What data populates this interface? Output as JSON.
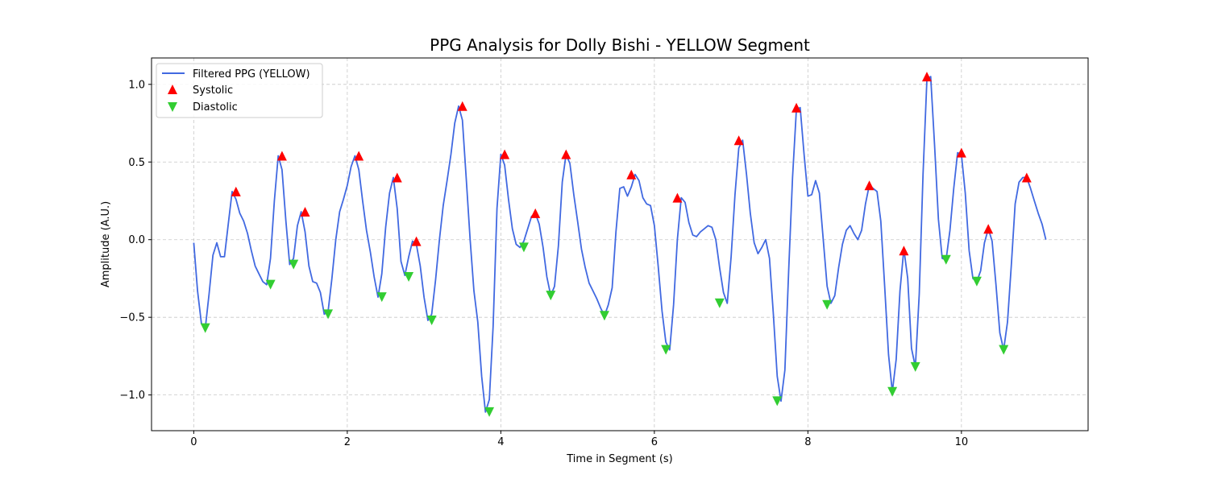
{
  "chart_data": {
    "type": "line",
    "title": "PPG Analysis for Dolly Bishi - YELLOW Segment",
    "xlabel": "Time in Segment (s)",
    "ylabel": "Amplitude (A.U.)",
    "xlim": [
      -0.55,
      11.65
    ],
    "ylim": [
      -1.23,
      1.17
    ],
    "xticks": [
      0,
      2,
      4,
      6,
      8,
      10
    ],
    "yticks": [
      -1.0,
      -0.5,
      0.0,
      0.5,
      1.0
    ],
    "xtick_labels": [
      "0",
      "2",
      "4",
      "6",
      "8",
      "10"
    ],
    "ytick_labels": [
      "−1.0",
      "−0.5",
      "0.0",
      "0.5",
      "1.0"
    ],
    "grid": true,
    "legend_position": "top-left",
    "colors": {
      "line": "#4169e1",
      "systolic": "#ff0000",
      "diastolic": "#32cd32"
    },
    "series": [
      {
        "name": "Filtered PPG (YELLOW)",
        "kind": "line",
        "x": [
          0.0,
          0.05,
          0.1,
          0.15,
          0.2,
          0.25,
          0.3,
          0.35,
          0.4,
          0.45,
          0.5,
          0.55,
          0.6,
          0.65,
          0.7,
          0.75,
          0.8,
          0.85,
          0.9,
          0.95,
          1.0,
          1.05,
          1.1,
          1.15,
          1.2,
          1.25,
          1.3,
          1.35,
          1.4,
          1.45,
          1.5,
          1.55,
          1.6,
          1.65,
          1.7,
          1.75,
          1.8,
          1.85,
          1.9,
          1.95,
          2.0,
          2.05,
          2.1,
          2.15,
          2.2,
          2.25,
          2.3,
          2.35,
          2.4,
          2.45,
          2.5,
          2.55,
          2.6,
          2.65,
          2.7,
          2.75,
          2.8,
          2.85,
          2.9,
          2.95,
          3.0,
          3.05,
          3.1,
          3.15,
          3.2,
          3.25,
          3.3,
          3.35,
          3.4,
          3.45,
          3.5,
          3.55,
          3.6,
          3.65,
          3.7,
          3.75,
          3.8,
          3.85,
          3.9,
          3.95,
          4.0,
          4.05,
          4.1,
          4.15,
          4.2,
          4.25,
          4.3,
          4.35,
          4.4,
          4.45,
          4.5,
          4.55,
          4.6,
          4.65,
          4.7,
          4.75,
          4.8,
          4.85,
          4.9,
          4.95,
          5.0,
          5.05,
          5.1,
          5.15,
          5.2,
          5.25,
          5.3,
          5.35,
          5.4,
          5.45,
          5.5,
          5.55,
          5.6,
          5.65,
          5.7,
          5.75,
          5.8,
          5.85,
          5.9,
          5.95,
          6.0,
          6.05,
          6.1,
          6.15,
          6.2,
          6.25,
          6.3,
          6.35,
          6.4,
          6.45,
          6.5,
          6.55,
          6.6,
          6.65,
          6.7,
          6.75,
          6.8,
          6.85,
          6.9,
          6.95,
          7.0,
          7.05,
          7.1,
          7.15,
          7.2,
          7.25,
          7.3,
          7.35,
          7.4,
          7.45,
          7.5,
          7.55,
          7.6,
          7.65,
          7.7,
          7.75,
          7.8,
          7.85,
          7.9,
          7.95,
          8.0,
          8.05,
          8.1,
          8.15,
          8.2,
          8.25,
          8.3,
          8.35,
          8.4,
          8.45,
          8.5,
          8.55,
          8.6,
          8.65,
          8.7,
          8.75,
          8.8,
          8.85,
          8.9,
          8.95,
          9.0,
          9.05,
          9.1,
          9.15,
          9.2,
          9.25,
          9.3,
          9.35,
          9.4,
          9.45,
          9.5,
          9.55,
          9.6,
          9.65,
          9.7,
          9.75,
          9.8,
          9.85,
          9.9,
          9.95,
          10.0,
          10.05,
          10.1,
          10.15,
          10.2,
          10.25,
          10.3,
          10.35,
          10.4,
          10.45,
          10.5,
          10.55,
          10.6,
          10.65,
          10.7,
          10.75,
          10.8,
          10.85,
          10.9,
          10.95,
          11.0,
          11.05,
          11.1
        ],
        "y": [
          -0.02,
          -0.33,
          -0.54,
          -0.57,
          -0.35,
          -0.1,
          -0.02,
          -0.11,
          -0.11,
          0.1,
          0.31,
          0.26,
          0.17,
          0.12,
          0.04,
          -0.07,
          -0.17,
          -0.22,
          -0.27,
          -0.29,
          -0.12,
          0.25,
          0.54,
          0.45,
          0.12,
          -0.16,
          -0.12,
          0.09,
          0.18,
          0.05,
          -0.17,
          -0.27,
          -0.28,
          -0.34,
          -0.48,
          -0.46,
          -0.25,
          0.0,
          0.18,
          0.26,
          0.35,
          0.47,
          0.54,
          0.45,
          0.25,
          0.06,
          -0.08,
          -0.24,
          -0.37,
          -0.22,
          0.08,
          0.3,
          0.4,
          0.2,
          -0.14,
          -0.23,
          -0.11,
          -0.01,
          -0.03,
          -0.17,
          -0.37,
          -0.52,
          -0.48,
          -0.26,
          0.0,
          0.22,
          0.38,
          0.55,
          0.75,
          0.86,
          0.77,
          0.39,
          0.0,
          -0.33,
          -0.53,
          -0.88,
          -1.11,
          -1.03,
          -0.56,
          0.2,
          0.55,
          0.48,
          0.26,
          0.07,
          -0.03,
          -0.05,
          -0.01,
          0.07,
          0.15,
          0.17,
          0.1,
          -0.05,
          -0.24,
          -0.36,
          -0.3,
          -0.04,
          0.37,
          0.55,
          0.49,
          0.29,
          0.12,
          -0.06,
          -0.18,
          -0.28,
          -0.33,
          -0.38,
          -0.44,
          -0.49,
          -0.42,
          -0.31,
          0.05,
          0.33,
          0.34,
          0.28,
          0.34,
          0.42,
          0.38,
          0.27,
          0.23,
          0.22,
          0.09,
          -0.17,
          -0.46,
          -0.66,
          -0.71,
          -0.42,
          0.0,
          0.27,
          0.24,
          0.11,
          0.03,
          0.02,
          0.05,
          0.07,
          0.09,
          0.08,
          0.0,
          -0.18,
          -0.34,
          -0.41,
          -0.11,
          0.29,
          0.59,
          0.64,
          0.42,
          0.17,
          -0.02,
          -0.09,
          -0.05,
          0.0,
          -0.12,
          -0.48,
          -0.88,
          -1.04,
          -0.84,
          -0.2,
          0.4,
          0.84,
          0.85,
          0.55,
          0.28,
          0.29,
          0.38,
          0.3,
          0.0,
          -0.3,
          -0.41,
          -0.36,
          -0.18,
          -0.03,
          0.06,
          0.09,
          0.04,
          0.0,
          0.06,
          0.23,
          0.35,
          0.33,
          0.31,
          0.12,
          -0.3,
          -0.74,
          -0.98,
          -0.77,
          -0.33,
          -0.06,
          -0.25,
          -0.7,
          -0.82,
          -0.35,
          0.42,
          1.03,
          1.05,
          0.61,
          0.13,
          -0.12,
          -0.13,
          0.06,
          0.33,
          0.56,
          0.55,
          0.3,
          -0.07,
          -0.25,
          -0.27,
          -0.2,
          -0.02,
          0.07,
          -0.01,
          -0.29,
          -0.6,
          -0.71,
          -0.53,
          -0.16,
          0.23,
          0.37,
          0.4,
          0.4,
          0.33,
          0.25,
          0.17,
          0.1,
          0.0
        ]
      },
      {
        "name": "Systolic",
        "kind": "marker-up",
        "x": [
          0.55,
          1.15,
          1.45,
          2.15,
          2.65,
          2.9,
          3.5,
          4.05,
          4.45,
          4.85,
          5.7,
          6.3,
          7.1,
          7.85,
          8.8,
          9.25,
          9.55,
          10.0,
          10.35,
          10.85
        ],
        "y": [
          0.31,
          0.54,
          0.18,
          0.54,
          0.4,
          -0.01,
          0.86,
          0.55,
          0.17,
          0.55,
          0.42,
          0.27,
          0.64,
          0.85,
          0.35,
          -0.07,
          1.05,
          0.56,
          0.07,
          0.4
        ]
      },
      {
        "name": "Diastolic",
        "kind": "marker-down",
        "x": [
          0.15,
          1.0,
          1.3,
          1.75,
          2.45,
          2.8,
          3.1,
          3.85,
          4.3,
          4.65,
          5.35,
          6.15,
          6.85,
          7.6,
          8.25,
          9.1,
          9.4,
          9.8,
          10.2,
          10.55
        ],
        "y": [
          -0.57,
          -0.29,
          -0.16,
          -0.48,
          -0.37,
          -0.24,
          -0.52,
          -1.11,
          -0.05,
          -0.36,
          -0.49,
          -0.71,
          -0.41,
          -1.04,
          -0.42,
          -0.98,
          -0.82,
          -0.13,
          -0.27,
          -0.71
        ]
      }
    ]
  }
}
